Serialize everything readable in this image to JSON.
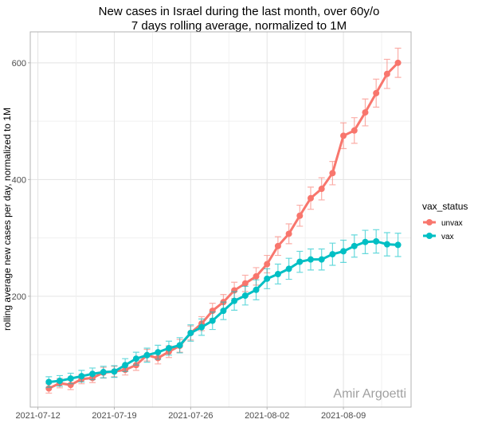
{
  "chart_data": {
    "type": "line",
    "title": "New cases in Israel during the last month, over 60y/o",
    "subtitle": "7 days rolling average, normalized to 1M",
    "xlabel": "",
    "ylabel": "rolling average new cases per day, normalized to 1M",
    "x": [
      "2021-07-13",
      "2021-07-14",
      "2021-07-15",
      "2021-07-16",
      "2021-07-17",
      "2021-07-18",
      "2021-07-19",
      "2021-07-20",
      "2021-07-21",
      "2021-07-22",
      "2021-07-23",
      "2021-07-24",
      "2021-07-25",
      "2021-07-26",
      "2021-07-27",
      "2021-07-28",
      "2021-07-29",
      "2021-07-30",
      "2021-07-31",
      "2021-08-01",
      "2021-08-02",
      "2021-08-03",
      "2021-08-04",
      "2021-08-05",
      "2021-08-06",
      "2021-08-07",
      "2021-08-08",
      "2021-08-09",
      "2021-08-10",
      "2021-08-11",
      "2021-08-12",
      "2021-08-13",
      "2021-08-14"
    ],
    "x_ticks": [
      "2021-07-12",
      "2021-07-19",
      "2021-07-26",
      "2021-08-02",
      "2021-08-09"
    ],
    "y_ticks": [
      200,
      400,
      600
    ],
    "ylim": [
      10,
      653
    ],
    "xlim_days_from_first_tick": [
      -0.7,
      34.2
    ],
    "grid": true,
    "legend": {
      "title": "vax_status",
      "placement": "right"
    },
    "series": [
      {
        "name": "unvax",
        "color": "#F8766D",
        "values": [
          42,
          51,
          48,
          58,
          60,
          69,
          71,
          74,
          82,
          99,
          94,
          105,
          115,
          137,
          153,
          175,
          190,
          210,
          222,
          234,
          255,
          286,
          307,
          338,
          368,
          384,
          411,
          475,
          484,
          515,
          548,
          581,
          600
        ],
        "err": [
          8,
          8,
          8,
          8,
          8,
          9,
          9,
          9,
          9,
          10,
          10,
          10,
          11,
          12,
          12,
          13,
          13,
          14,
          14,
          15,
          15,
          16,
          17,
          18,
          19,
          19,
          20,
          22,
          22,
          23,
          24,
          25,
          25
        ]
      },
      {
        "name": "vax",
        "color": "#00BFC4",
        "values": [
          53,
          55,
          59,
          63,
          67,
          70,
          71,
          82,
          93,
          99,
          104,
          111,
          116,
          137,
          147,
          158,
          175,
          192,
          201,
          211,
          230,
          238,
          247,
          259,
          263,
          263,
          272,
          277,
          286,
          293,
          294,
          289,
          288
        ],
        "err": [
          9,
          9,
          9,
          10,
          10,
          10,
          10,
          11,
          11,
          12,
          12,
          12,
          13,
          14,
          14,
          15,
          15,
          16,
          16,
          17,
          17,
          17,
          18,
          18,
          18,
          18,
          19,
          19,
          19,
          20,
          20,
          20,
          20
        ]
      }
    ],
    "watermark": "Amir Argoetti"
  }
}
